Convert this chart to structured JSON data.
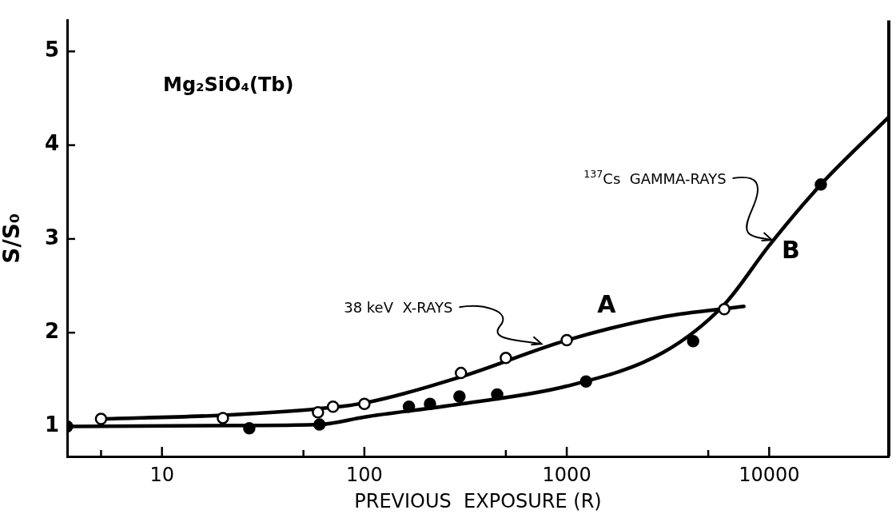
{
  "chart_data": {
    "type": "line",
    "xlabel": "PREVIOUS  EXPOSURE (R)",
    "ylabel": "S/S₀",
    "log": "x",
    "xlim": [
      3.4,
      39000
    ],
    "xticks": [
      {
        "value": 5,
        "label": null
      },
      10,
      {
        "value": 50,
        "label": null
      },
      100,
      {
        "value": 500,
        "label": null
      },
      1000,
      {
        "value": 5000,
        "label": null
      },
      10000
    ],
    "ylim": [
      0.68,
      5.33
    ],
    "yticks": [
      1,
      2,
      3,
      4,
      5
    ],
    "grid": false,
    "annotations": [
      "Mg₂SiO₄(Tb)",
      {
        "text": "38 keV  X-RAYS",
        "x": 750,
        "y": 1.88
      },
      {
        "text": "$^{137}$Cs  GAMMA-RAYS",
        "x": 10300,
        "y": 2.99
      }
    ],
    "series": [
      {
        "type": "scatter",
        "color": "#ffffff",
        "marker": "circle",
        "x": [
          5,
          20,
          59,
          70,
          100,
          300,
          500,
          1000,
          6000
        ],
        "values": [
          1.08,
          1.09,
          1.15,
          1.21,
          1.24,
          1.57,
          1.73,
          1.92,
          2.25
        ]
      },
      {
        "type": "scatter",
        "color": "#000000",
        "marker": "circle",
        "x": [
          3.4,
          27,
          60,
          166,
          211,
          295,
          453,
          1245,
          4210,
          18000
        ],
        "values": [
          1.0,
          0.98,
          1.02,
          1.21,
          1.24,
          1.32,
          1.34,
          1.48,
          1.91,
          3.58
        ]
      },
      {
        "type": "line",
        "name": "A",
        "color": "#000000",
        "marker": "none",
        "x": [
          5,
          20,
          60,
          100,
          300,
          1000,
          3000,
          7500
        ],
        "values": [
          1.08,
          1.12,
          1.19,
          1.25,
          1.53,
          1.92,
          2.17,
          2.28
        ]
      },
      {
        "type": "line",
        "name": "B",
        "color": "#000000",
        "marker": "none",
        "x": [
          3.4,
          27,
          60,
          100,
          300,
          1000,
          3000,
          6000,
          10000,
          18000,
          39000
        ],
        "values": [
          1.0,
          1.01,
          1.02,
          1.1,
          1.24,
          1.43,
          1.79,
          2.3,
          2.93,
          3.58,
          4.3
        ]
      }
    ]
  }
}
